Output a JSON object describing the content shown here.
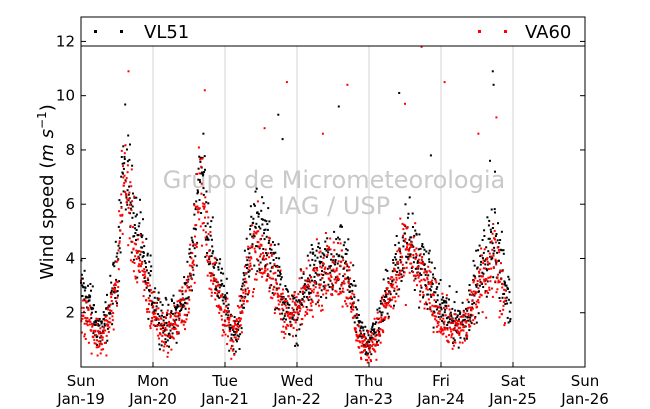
{
  "chart_data": {
    "type": "scatter",
    "ylabel_main": "Wind speed (",
    "ylabel_unit_base": "m s",
    "ylabel_unit_exp": "−1",
    "ylabel_close": ")",
    "ylim": [
      0,
      12.9
    ],
    "yticks": [
      2,
      4,
      6,
      8,
      10,
      12
    ],
    "xlim": [
      0,
      7
    ],
    "xticks": [
      {
        "x": 0,
        "day": "Sun",
        "date": "Jan-19"
      },
      {
        "x": 1,
        "day": "Mon",
        "date": "Jan-20"
      },
      {
        "x": 2,
        "day": "Tue",
        "date": "Jan-21"
      },
      {
        "x": 3,
        "day": "Wed",
        "date": "Jan-22"
      },
      {
        "x": 4,
        "day": "Thu",
        "date": "Jan-23"
      },
      {
        "x": 5,
        "day": "Fri",
        "date": "Jan-24"
      },
      {
        "x": 6,
        "day": "Sat",
        "date": "Jan-25"
      },
      {
        "x": 7,
        "day": "Sun",
        "date": "Jan-26"
      }
    ],
    "grid": "vertical",
    "legend_position": "top",
    "series": [
      {
        "name": "VL51",
        "color": "#000000",
        "marker": "square",
        "profile": [
          [
            0.0,
            3.0
          ],
          [
            0.1,
            2.6
          ],
          [
            0.2,
            1.6
          ],
          [
            0.3,
            1.3
          ],
          [
            0.4,
            2.2
          ],
          [
            0.5,
            3.6
          ],
          [
            0.58,
            7.2
          ],
          [
            0.66,
            6.8
          ],
          [
            0.75,
            5.0
          ],
          [
            0.85,
            4.2
          ],
          [
            0.95,
            3.0
          ],
          [
            1.05,
            2.2
          ],
          [
            1.15,
            1.6
          ],
          [
            1.25,
            1.6
          ],
          [
            1.35,
            2.0
          ],
          [
            1.45,
            2.6
          ],
          [
            1.55,
            4.0
          ],
          [
            1.65,
            7.4
          ],
          [
            1.72,
            6.4
          ],
          [
            1.8,
            4.3
          ],
          [
            1.9,
            3.2
          ],
          [
            2.0,
            2.4
          ],
          [
            2.1,
            1.2
          ],
          [
            2.2,
            1.5
          ],
          [
            2.3,
            3.8
          ],
          [
            2.42,
            5.4
          ],
          [
            2.55,
            4.6
          ],
          [
            2.65,
            4.0
          ],
          [
            2.75,
            3.2
          ],
          [
            2.88,
            2.0
          ],
          [
            3.0,
            1.8
          ],
          [
            3.12,
            3.0
          ],
          [
            3.25,
            3.6
          ],
          [
            3.35,
            3.4
          ],
          [
            3.5,
            3.6
          ],
          [
            3.6,
            3.8
          ],
          [
            3.7,
            3.6
          ],
          [
            3.8,
            2.2
          ],
          [
            3.88,
            1.2
          ],
          [
            3.95,
            1.0
          ],
          [
            4.05,
            1.1
          ],
          [
            4.15,
            1.6
          ],
          [
            4.25,
            2.8
          ],
          [
            4.35,
            3.4
          ],
          [
            4.45,
            4.2
          ],
          [
            4.55,
            4.8
          ],
          [
            4.65,
            4.0
          ],
          [
            4.75,
            3.6
          ],
          [
            4.85,
            3.0
          ],
          [
            4.95,
            2.4
          ],
          [
            5.05,
            2.0
          ],
          [
            5.15,
            1.8
          ],
          [
            5.25,
            1.7
          ],
          [
            5.35,
            1.8
          ],
          [
            5.45,
            2.8
          ],
          [
            5.55,
            3.4
          ],
          [
            5.65,
            4.2
          ],
          [
            5.75,
            4.8
          ],
          [
            5.82,
            3.8
          ],
          [
            5.9,
            2.8
          ],
          [
            5.97,
            2.3
          ]
        ],
        "extra_points": [
          [
            5.72,
            10.9
          ],
          [
            5.73,
            10.4
          ],
          [
            5.68,
            7.6
          ],
          [
            5.75,
            7.2
          ],
          [
            4.42,
            10.1
          ],
          [
            3.58,
            9.6
          ],
          [
            2.74,
            9.3
          ],
          [
            1.7,
            8.6
          ],
          [
            0.68,
            8.2
          ],
          [
            4.86,
            7.8
          ],
          [
            2.8,
            8.4
          ]
        ]
      },
      {
        "name": "VA60",
        "color": "#ff0000",
        "marker": "square",
        "profile": [
          [
            0.0,
            2.2
          ],
          [
            0.1,
            1.8
          ],
          [
            0.2,
            1.2
          ],
          [
            0.3,
            1.0
          ],
          [
            0.4,
            1.8
          ],
          [
            0.5,
            3.0
          ],
          [
            0.58,
            7.0
          ],
          [
            0.66,
            6.2
          ],
          [
            0.75,
            4.4
          ],
          [
            0.85,
            3.4
          ],
          [
            0.95,
            2.4
          ],
          [
            1.05,
            1.8
          ],
          [
            1.15,
            1.3
          ],
          [
            1.25,
            1.4
          ],
          [
            1.35,
            1.8
          ],
          [
            1.45,
            2.4
          ],
          [
            1.55,
            3.6
          ],
          [
            1.65,
            6.8
          ],
          [
            1.72,
            5.8
          ],
          [
            1.8,
            3.8
          ],
          [
            1.9,
            2.6
          ],
          [
            2.0,
            1.8
          ],
          [
            2.1,
            1.0
          ],
          [
            2.2,
            1.6
          ],
          [
            2.3,
            3.2
          ],
          [
            2.42,
            4.6
          ],
          [
            2.55,
            4.0
          ],
          [
            2.65,
            3.2
          ],
          [
            2.75,
            2.6
          ],
          [
            2.88,
            1.8
          ],
          [
            3.0,
            2.0
          ],
          [
            3.12,
            2.8
          ],
          [
            3.25,
            3.4
          ],
          [
            3.35,
            3.2
          ],
          [
            3.5,
            3.8
          ],
          [
            3.6,
            3.6
          ],
          [
            3.7,
            3.2
          ],
          [
            3.8,
            1.8
          ],
          [
            3.88,
            0.8
          ],
          [
            3.95,
            0.7
          ],
          [
            4.05,
            0.9
          ],
          [
            4.15,
            1.4
          ],
          [
            4.25,
            2.4
          ],
          [
            4.35,
            3.0
          ],
          [
            4.45,
            3.8
          ],
          [
            4.55,
            4.4
          ],
          [
            4.65,
            3.6
          ],
          [
            4.75,
            3.2
          ],
          [
            4.85,
            2.6
          ],
          [
            4.95,
            2.0
          ],
          [
            5.05,
            1.6
          ],
          [
            5.15,
            1.4
          ],
          [
            5.25,
            1.3
          ],
          [
            5.35,
            1.6
          ],
          [
            5.45,
            2.4
          ],
          [
            5.55,
            3.0
          ],
          [
            5.65,
            3.6
          ],
          [
            5.75,
            4.2
          ],
          [
            5.82,
            3.2
          ],
          [
            5.9,
            2.2
          ]
        ],
        "extra_points": [
          [
            0.66,
            10.9
          ],
          [
            1.72,
            10.2
          ],
          [
            2.86,
            10.5
          ],
          [
            3.7,
            10.4
          ],
          [
            4.73,
            11.8
          ],
          [
            5.05,
            10.5
          ],
          [
            5.77,
            9.2
          ],
          [
            2.55,
            8.8
          ],
          [
            3.36,
            8.6
          ],
          [
            4.5,
            9.7
          ],
          [
            5.52,
            8.6
          ]
        ]
      }
    ],
    "watermark_lines": [
      "Grupo de Micrometeorologia",
      "IAG / USP"
    ]
  }
}
